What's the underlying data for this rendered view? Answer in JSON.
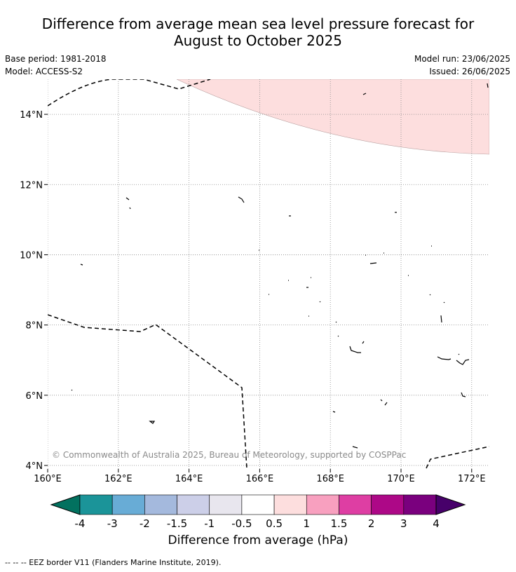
{
  "title_line1": "Difference from average mean sea level pressure forecast for",
  "title_line2": "August to October 2025",
  "base_period": "Base period: 1981-2018",
  "model": "Model: ACCESS-S2",
  "model_run": "Model run: 23/06/2025",
  "issued": "Issued: 26/06/2025",
  "copyright": "© Commonwealth of Australia 2025, Bureau of Meteorology, supported by COSPPac",
  "footer_note": "--  --  -- EEZ border V11 (Flanders Marine Institute, 2019).",
  "colorbar_title": "Difference from average (hPa)",
  "map": {
    "lon_ticks": [
      "160°E",
      "162°E",
      "164°E",
      "166°E",
      "168°E",
      "170°E",
      "172°E"
    ],
    "lat_ticks": [
      "14°N",
      "12°N",
      "10°N",
      "8°N",
      "6°N",
      "4°N"
    ],
    "lon_range": [
      160,
      172.5
    ],
    "lat_range": [
      3.9,
      15
    ],
    "grid": true,
    "shaded_region": {
      "category": "0.5 to 1",
      "color": "#fddede",
      "location": "northeast"
    }
  },
  "colorbar": {
    "labels": [
      "-4",
      "-3",
      "-2",
      "-1.5",
      "-1",
      "-0.5",
      "0.5",
      "1",
      "1.5",
      "2",
      "3",
      "4"
    ],
    "colors": [
      "#02715f",
      "#1b9499",
      "#68acd6",
      "#a4b9dd",
      "#cccfe8",
      "#e8e6ee",
      "#ffffff",
      "#fddede",
      "#f8a0bf",
      "#de3ea3",
      "#ad0887",
      "#7a007e",
      "#47006a"
    ]
  }
}
